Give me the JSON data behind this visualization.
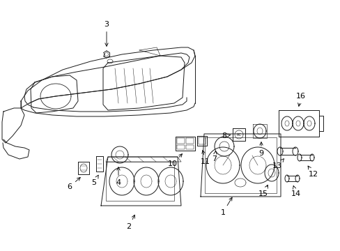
{
  "bg_color": "#ffffff",
  "line_color": "#1a1a1a",
  "fig_width": 4.89,
  "fig_height": 3.6,
  "dpi": 100,
  "label_fs": 8,
  "lw": 0.7
}
